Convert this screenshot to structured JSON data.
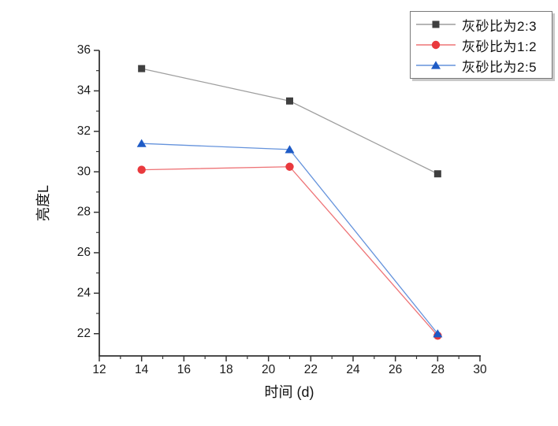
{
  "chart_data": {
    "type": "line",
    "title": "",
    "xlabel": "时间 (d)",
    "ylabel": "亮度L",
    "x": [
      14,
      21,
      28
    ],
    "series": [
      {
        "name": "灰砂比为2:3",
        "marker": "square",
        "marker_color": "#3f3f3f",
        "line_color": "#9e9e9e",
        "values": [
          35.1,
          33.5,
          29.9
        ]
      },
      {
        "name": "灰砂比为1:2",
        "marker": "circle",
        "marker_color": "#e9393d",
        "line_color": "#ee7376",
        "values": [
          30.1,
          30.25,
          21.9
        ]
      },
      {
        "name": "灰砂比为2:5",
        "marker": "triangle",
        "marker_color": "#1e5bc6",
        "line_color": "#6593dc",
        "values": [
          31.4,
          31.1,
          22.0
        ]
      }
    ],
    "xlim": [
      12,
      30
    ],
    "ylim": [
      20.9,
      36
    ],
    "x_ticks": [
      12,
      14,
      16,
      18,
      20,
      22,
      24,
      26,
      28,
      30
    ],
    "y_ticks": [
      22,
      24,
      26,
      28,
      30,
      32,
      34,
      36
    ],
    "minor_ticks_x": [
      13,
      15,
      17,
      19,
      21,
      23,
      25,
      27,
      29
    ],
    "minor_ticks_y": [
      23,
      25,
      27,
      29,
      31,
      33,
      35
    ],
    "grid": false,
    "legend_position": "top-right",
    "axis_color": "#333333",
    "tick_label_color": "#1a1a1a"
  }
}
